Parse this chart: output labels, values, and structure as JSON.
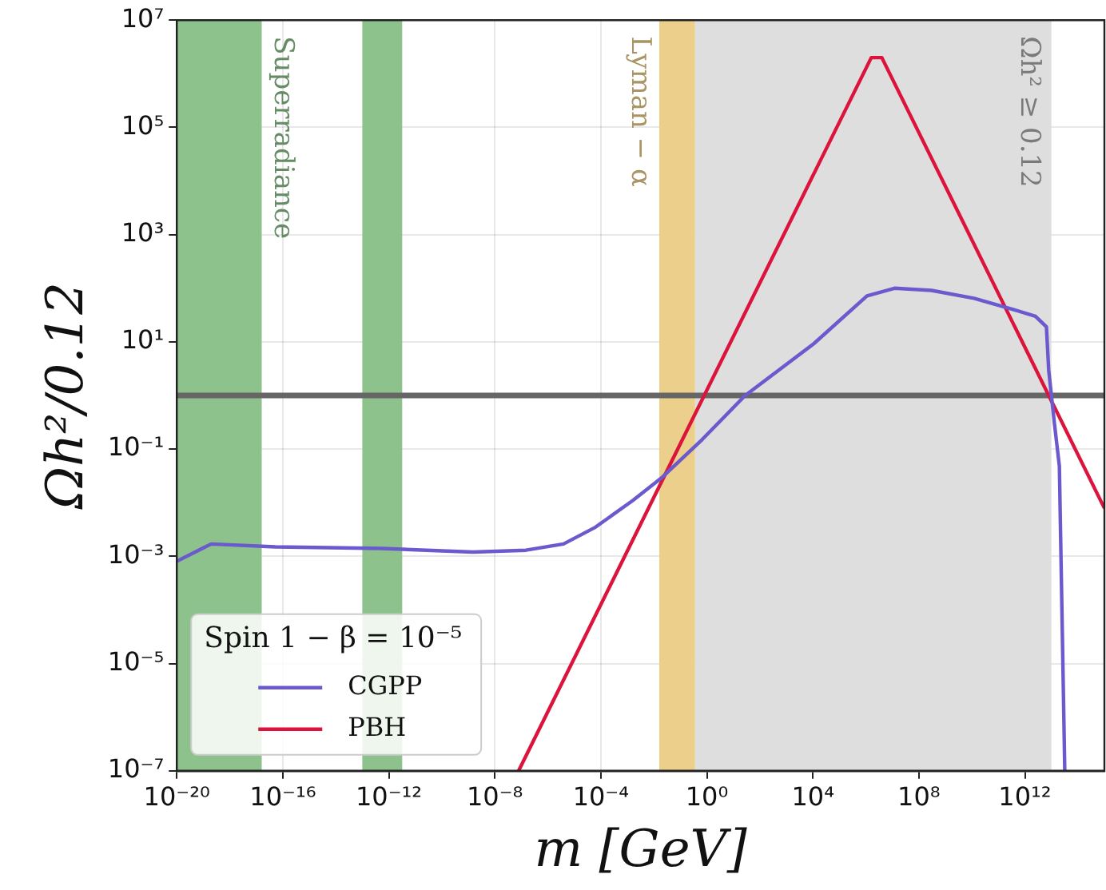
{
  "chart_data": {
    "type": "line",
    "xlabel": "m [GeV]",
    "ylabel": "Ωh²/0.12",
    "legend_title": "Spin 1 − β = 10⁻⁵",
    "legend": "bottom left",
    "grid": true,
    "log": "xy",
    "marker": "none",
    "line_style": "solid",
    "xlim": [
      1e-20,
      1000000000000000.0
    ],
    "ylim": [
      1e-07,
      10000000.0
    ],
    "xticks": [
      {
        "value": 1e-20,
        "label": "10⁻²⁰"
      },
      {
        "value": 1e-16,
        "label": "10⁻¹⁶"
      },
      {
        "value": 1e-12,
        "label": "10⁻¹²"
      },
      {
        "value": 1e-08,
        "label": "10⁻⁸"
      },
      {
        "value": 0.0001,
        "label": "10⁻⁴"
      },
      {
        "value": 1,
        "label": "10⁰"
      },
      {
        "value": 10000.0,
        "label": "10⁴"
      },
      {
        "value": 100000000.0,
        "label": "10⁸"
      },
      {
        "value": 1000000000000.0,
        "label": "10¹²"
      }
    ],
    "yticks": [
      {
        "value": 1e-07,
        "label": "10⁻⁷"
      },
      {
        "value": 1e-05,
        "label": "10⁻⁵"
      },
      {
        "value": 0.001,
        "label": "10⁻³"
      },
      {
        "value": 0.1,
        "label": "10⁻¹"
      },
      {
        "value": 10,
        "label": "10¹"
      },
      {
        "value": 1000,
        "label": "10³"
      },
      {
        "value": 100000.0,
        "label": "10⁵"
      },
      {
        "value": 10000000.0,
        "label": "10⁷"
      }
    ],
    "series": [
      {
        "name": "CGPP",
        "color": "#6a5acd",
        "x": [
          1e-20,
          2e-19,
          5.2e-17,
          5.6e-13,
          1.5e-09,
          1.5e-07,
          3.9e-06,
          6.3e-05,
          0.0016,
          0.021,
          0.66,
          28,
          11000.0,
          1100000.0,
          12000000.0,
          300000000.0,
          12000000000.0,
          320000000000.0,
          2500000000000.0,
          6500000000000.0,
          7900000000000.0,
          13000000000000.0,
          20000000000000.0,
          32000000000000.0
        ],
        "values": [
          0.00081,
          0.0017,
          0.0015,
          0.0014,
          0.0012,
          0.0013,
          0.0017,
          0.0035,
          0.011,
          0.03,
          0.15,
          1.0,
          9.3,
          72,
          100,
          91,
          65,
          41,
          30,
          19,
          3.0,
          0.3,
          0.048,
          1e-07
        ]
      },
      {
        "name": "PBH",
        "color": "#dc143c",
        "x": [
          7.9e-08,
          1600000.0,
          4000000.0,
          1000000000000000.0
        ],
        "values": [
          1e-07,
          2000000.0,
          2000000.0,
          0.0079
        ]
      }
    ],
    "bands": [
      {
        "axis": "x",
        "from": 1e-20,
        "to": 1.6e-17,
        "label": "Superradiance",
        "color": "#8dc28d"
      },
      {
        "axis": "x",
        "from": 1e-13,
        "to": 3.2e-12,
        "color": "#8dc28d"
      },
      {
        "axis": "x",
        "from": 0.016,
        "to": 0.36,
        "label": "Lyman − α",
        "color": "#ebcf8a"
      },
      {
        "axis": "x",
        "from": 0.36,
        "to": 10000000000000.0,
        "label": "Ωh² ≥ 0.12",
        "color": "#dedede"
      }
    ],
    "ref_lines": [
      {
        "axis": "y",
        "value": 1,
        "color": "#666666"
      }
    ]
  }
}
